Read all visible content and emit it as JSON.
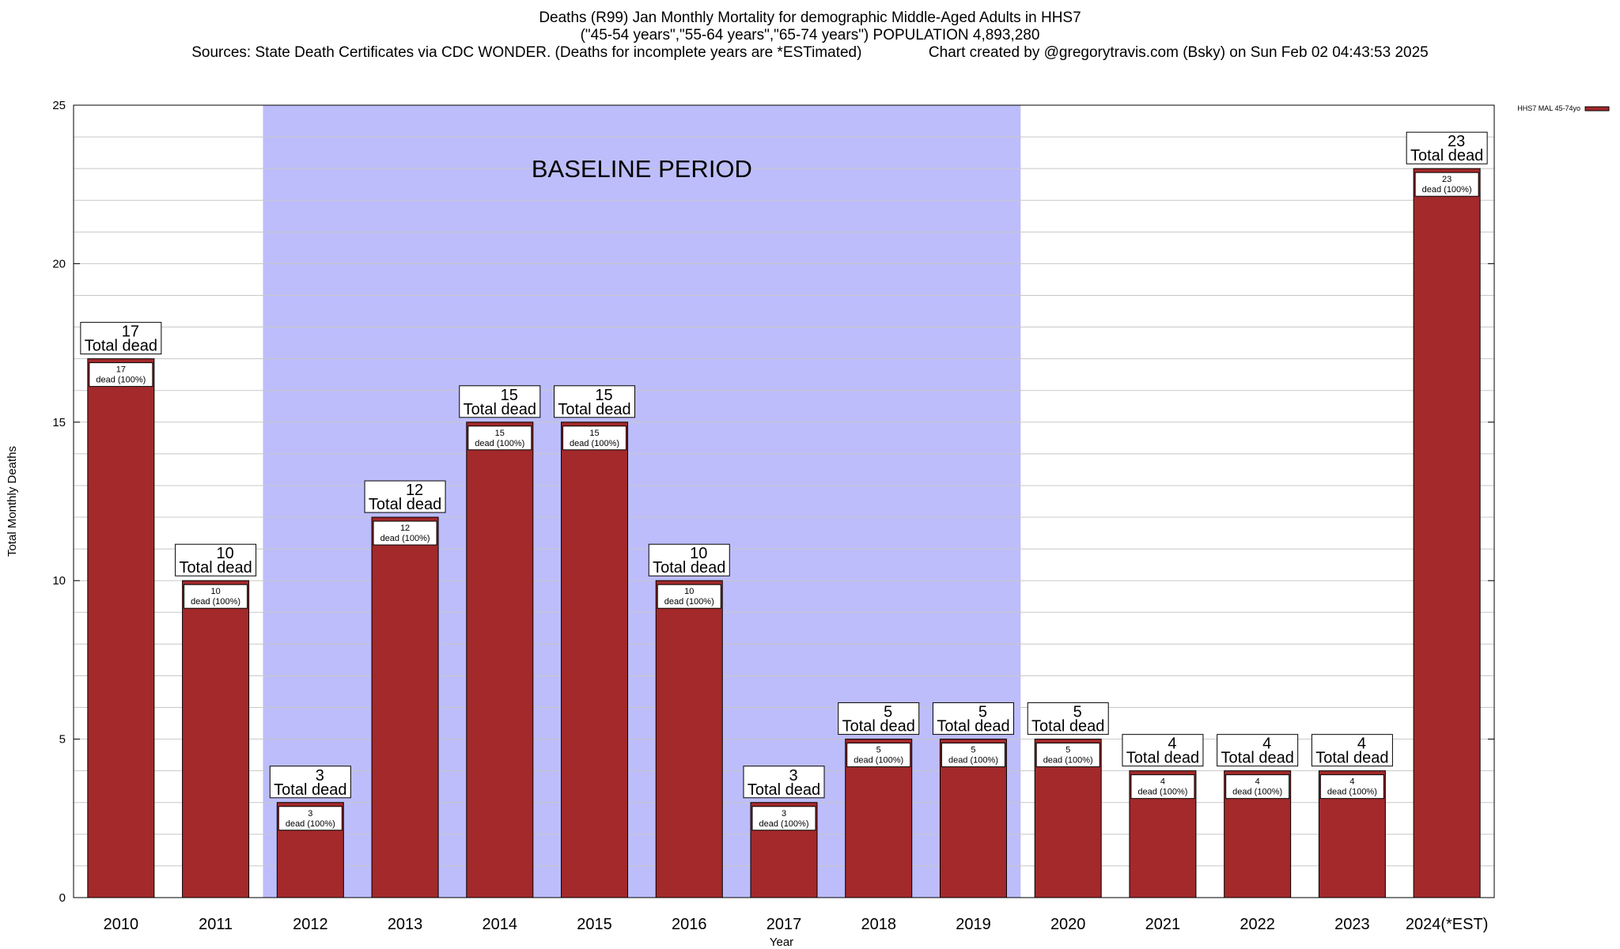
{
  "title": {
    "line1": "Deaths (R99) Jan Monthly Mortality for demographic Middle-Aged Adults in HHS7",
    "line2": "(\"45-54 years\",\"55-64 years\",\"65-74 years\") POPULATION 4,893,280",
    "line3_left": "Sources: State Death Certificates via CDC WONDER. (Deaths for incomplete years are *ESTimated)",
    "line3_right": "Chart created by @gregorytravis.com (Bsky) on Sun Feb 02 04:43:53 2025"
  },
  "chart_data": {
    "type": "bar",
    "categories": [
      "2010",
      "2011",
      "2012",
      "2013",
      "2014",
      "2015",
      "2016",
      "2017",
      "2018",
      "2019",
      "2020",
      "2021",
      "2022",
      "2023",
      "2024(*EST)"
    ],
    "series": [
      {
        "name": "HHS7 MAL 45-74yo",
        "values": [
          17,
          10,
          3,
          12,
          15,
          15,
          10,
          3,
          5,
          5,
          5,
          4,
          4,
          4,
          23
        ]
      }
    ],
    "xlabel": "Year",
    "ylabel": "Total Monthly Deaths",
    "ylim": [
      0,
      25
    ],
    "yticks": [
      0,
      5,
      10,
      15,
      20,
      25
    ],
    "grid": true,
    "legend_position": "top-right",
    "total_label_text": "Total dead",
    "bar_label_text": "dead (100%)",
    "baseline_period": {
      "label": "BASELINE PERIOD",
      "from_category": "2012",
      "to_category": "2019",
      "color": "#bdbdfb"
    },
    "bar_color": "#a3292b"
  }
}
